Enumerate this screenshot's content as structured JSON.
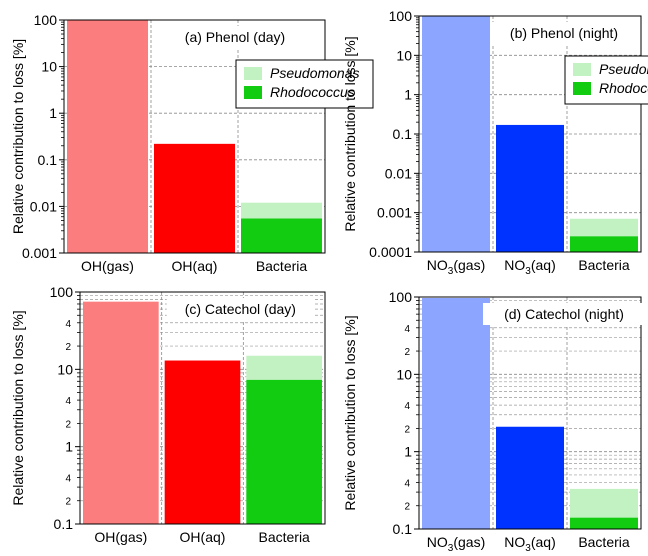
{
  "colors": {
    "oh_gas": "#fb7d7d",
    "oh_aq": "#ff0000",
    "no3_gas": "#8ca5ff",
    "no3_aq": "#0033ff",
    "pseudomonas": "#c2f2c2",
    "rhodococcus": "#11cc11"
  },
  "chart_data": [
    {
      "type": "bar",
      "title": "(a) Phenol (day)",
      "ylabel": "Relative contribution to loss [%]",
      "yscale": "log",
      "ylim": [
        0.001,
        100
      ],
      "yticks": [
        "0.001",
        "0.01",
        "0.1",
        "1",
        "10",
        "100"
      ],
      "minor_grid": false,
      "categories": [
        "OH(gas)",
        "OH(aq)",
        "Bacteria"
      ],
      "values": [
        100,
        0.22,
        null
      ],
      "bacteria": {
        "pseudomonas": 0.012,
        "rhodococcus": 0.0055
      },
      "legend": {
        "position": "right",
        "entries": [
          "Pseudomonas",
          "Rhodococcus"
        ]
      }
    },
    {
      "type": "bar",
      "title": "(b) Phenol (night)",
      "ylabel": "Relative contribution to loss [%]",
      "yscale": "log",
      "ylim": [
        0.0001,
        100
      ],
      "yticks": [
        "0.0001",
        "0.001",
        "0.01",
        "0.1",
        "1",
        "10",
        "100"
      ],
      "minor_grid": false,
      "categories": [
        "NO3(gas)",
        "NO3(aq)",
        "Bacteria"
      ],
      "values": [
        100,
        0.17,
        null
      ],
      "bacteria": {
        "pseudomonas": 0.0007,
        "rhodococcus": 0.00025
      },
      "legend": {
        "position": "right",
        "entries": [
          "Pseudomonas",
          "Rhodococcus"
        ]
      }
    },
    {
      "type": "bar",
      "title": "(c) Catechol (day)",
      "ylabel": "Relative contribution to loss [%]",
      "yscale": "log",
      "ylim": [
        0.1,
        100
      ],
      "yticks": [
        "0.1",
        "1",
        "10",
        "100"
      ],
      "minor_tick_labels": [
        "2",
        "4"
      ],
      "minor_grid": true,
      "categories": [
        "OH(gas)",
        "OH(aq)",
        "Bacteria"
      ],
      "values": [
        75,
        13,
        null
      ],
      "bacteria": {
        "pseudomonas": 15,
        "rhodococcus": 7.3
      },
      "legend": {
        "position": "none",
        "entries": []
      }
    },
    {
      "type": "bar",
      "title": "(d) Catechol (night)",
      "ylabel": "Relative contribution to loss [%]",
      "yscale": "log",
      "ylim": [
        0.1,
        100
      ],
      "yticks": [
        "0.1",
        "1",
        "10",
        "100"
      ],
      "minor_tick_labels": [
        "2",
        "4"
      ],
      "minor_grid": true,
      "categories": [
        "NO3(gas)",
        "NO3(aq)",
        "Bacteria"
      ],
      "values": [
        97,
        2.1,
        null
      ],
      "bacteria": {
        "pseudomonas": 0.33,
        "rhodococcus": 0.14
      },
      "legend": {
        "position": "none",
        "entries": []
      }
    }
  ]
}
